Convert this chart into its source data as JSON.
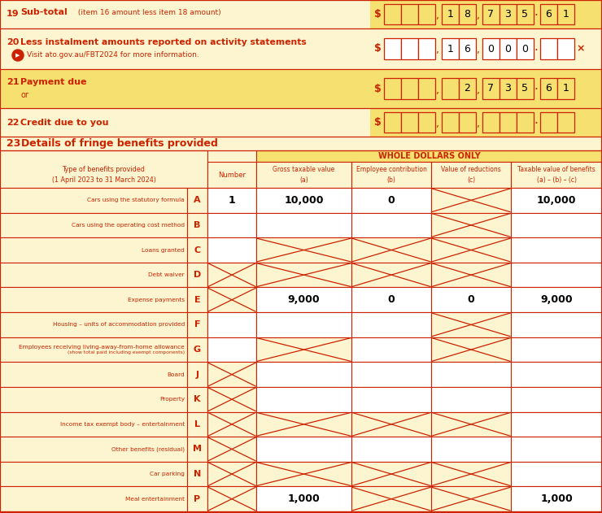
{
  "bg_color": "#fdf5d0",
  "header_bg": "#f5e070",
  "red": "#cc2200",
  "cell_bg": "#ffffff",
  "white_cell": "#ffffff",
  "item19_value_digits": [
    "",
    "",
    "",
    "1",
    "8",
    "7",
    "3",
    "5",
    "6",
    "1"
  ],
  "item20_value_digits": [
    "",
    "",
    "",
    "1",
    "6",
    "0",
    "0",
    "0",
    "",
    ""
  ],
  "item21_value_digits": [
    "",
    "",
    "",
    "",
    "2",
    "7",
    "3",
    "5",
    "6",
    "1"
  ],
  "item22_value_digits": [
    "",
    "",
    "",
    "",
    "",
    "",
    "",
    "",
    "",
    ""
  ],
  "rows": [
    {
      "label": "Cars using the statutory formula",
      "letter": "A",
      "number": "1",
      "gross": "10,000",
      "emp_contrib": "0",
      "reductions": "X",
      "taxable": "10,000"
    },
    {
      "label": "Cars using the operating cost method",
      "letter": "B",
      "number": "",
      "gross": "",
      "emp_contrib": "",
      "reductions": "X",
      "taxable": ""
    },
    {
      "label": "Loans granted",
      "letter": "C",
      "number": "",
      "gross": "X",
      "emp_contrib": "X",
      "reductions": "X",
      "taxable": ""
    },
    {
      "label": "Debt waiver",
      "letter": "D",
      "number": "X",
      "gross": "X",
      "emp_contrib": "X",
      "reductions": "X",
      "taxable": ""
    },
    {
      "label": "Expense payments",
      "letter": "E",
      "number": "X",
      "gross": "9,000",
      "emp_contrib": "0",
      "reductions": "0",
      "taxable": "9,000"
    },
    {
      "label": "Housing – units of accommodation provided",
      "letter": "F",
      "number": "",
      "gross": "",
      "emp_contrib": "",
      "reductions": "X",
      "taxable": ""
    },
    {
      "label": "Employees receiving living-away-from-home allowance",
      "letter": "G",
      "sublabel": "(show total paid including exempt components)",
      "number": "",
      "gross": "X",
      "emp_contrib": "",
      "reductions": "X",
      "taxable": ""
    },
    {
      "label": "Board",
      "letter": "J",
      "number": "X",
      "gross": "",
      "emp_contrib": "",
      "reductions": "",
      "taxable": ""
    },
    {
      "label": "Property",
      "letter": "K",
      "number": "X",
      "gross": "",
      "emp_contrib": "",
      "reductions": "",
      "taxable": ""
    },
    {
      "label": "Income tax exempt body – entertainment",
      "letter": "L",
      "number": "X",
      "gross": "X",
      "emp_contrib": "X",
      "reductions": "X",
      "taxable": ""
    },
    {
      "label": "Other benefits",
      "sublabel2": "(residual)",
      "letter": "M",
      "number": "X",
      "gross": "",
      "emp_contrib": "",
      "reductions": "",
      "taxable": ""
    },
    {
      "label": "Car parking",
      "letter": "N",
      "number": "X",
      "gross": "X",
      "emp_contrib": "X",
      "reductions": "X",
      "taxable": ""
    },
    {
      "label": "Meal entertainment",
      "letter": "P",
      "number": "X",
      "gross": "1,000",
      "emp_contrib": "X",
      "reductions": "X",
      "taxable": "1,000"
    }
  ]
}
